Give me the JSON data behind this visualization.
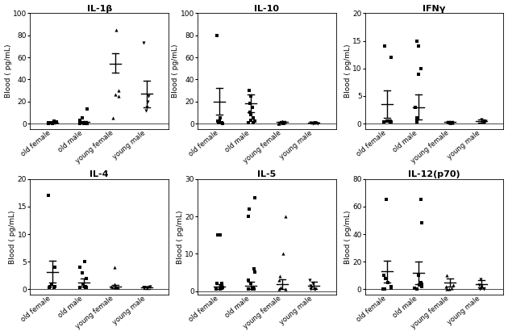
{
  "panels": [
    {
      "title": "IL-1β",
      "ylabel": "Blood ( pg/mL)",
      "ylim": [
        -5,
        100
      ],
      "yticks": [
        0,
        20,
        40,
        60,
        80,
        100
      ],
      "points": [
        [
          0.3,
          0.5,
          0.8,
          2.0,
          1.5,
          0.5,
          0.3,
          0.5,
          0.4
        ],
        [
          0.3,
          0.5,
          1.0,
          5.0,
          3.0,
          0.5,
          0.3,
          0.5,
          0.4,
          13.0,
          0.3
        ],
        [
          85,
          30,
          5,
          26,
          25
        ],
        [
          73,
          15,
          25,
          20,
          12
        ]
      ],
      "markers": [
        "s",
        "s",
        "^",
        "v"
      ],
      "means": [
        0.8,
        1.2,
        54,
        27
      ],
      "sem_low": [
        0.3,
        0.5,
        46,
        15
      ],
      "sem_high": [
        1.3,
        2.0,
        64,
        39
      ]
    },
    {
      "title": "IL-10",
      "ylabel": "Blood ( pg/mL)",
      "ylim": [
        -5,
        100
      ],
      "yticks": [
        0,
        20,
        40,
        60,
        80,
        100
      ],
      "points": [
        [
          80,
          2,
          1,
          0.5,
          0.5,
          0.3,
          0.5,
          2,
          5
        ],
        [
          30,
          25,
          18,
          15,
          10,
          8,
          5,
          3,
          2,
          1,
          0.5
        ],
        [
          2,
          1,
          0.5,
          0.5,
          0.5,
          0.3,
          0.3,
          1.5
        ],
        [
          1,
          0.5,
          0.3,
          0.5,
          0.5,
          0.3,
          1.0
        ]
      ],
      "markers": [
        "s",
        "s",
        "^",
        "v"
      ],
      "means": [
        20,
        18,
        1.5,
        1.0
      ],
      "sem_low": [
        8,
        10,
        0.5,
        0.3
      ],
      "sem_high": [
        32,
        26,
        2.5,
        1.7
      ]
    },
    {
      "title": "IFNγ",
      "ylabel": "Blood ( pg/mL)",
      "ylim": [
        -1,
        20
      ],
      "yticks": [
        0,
        5,
        10,
        15,
        20
      ],
      "points": [
        [
          14,
          12,
          0.3,
          0.3,
          0.5,
          0.5,
          0.3
        ],
        [
          15,
          14,
          10,
          9,
          3,
          1,
          0.5,
          0.3
        ],
        [
          0.3,
          0.3,
          0.2,
          0.2,
          0.3,
          0.2
        ],
        [
          0.8,
          0.5,
          0.3,
          0.3,
          0.5,
          0.5
        ]
      ],
      "markers": [
        "s",
        "s",
        "^",
        "v"
      ],
      "means": [
        3.5,
        3.0,
        0.3,
        0.5
      ],
      "sem_low": [
        1.0,
        0.8,
        0.1,
        0.2
      ],
      "sem_high": [
        6.0,
        5.2,
        0.5,
        0.8
      ]
    },
    {
      "title": "IL-4",
      "ylabel": "Blood ( pg/mL)",
      "ylim": [
        -1,
        20
      ],
      "yticks": [
        0,
        5,
        10,
        15,
        20
      ],
      "points": [
        [
          17,
          4,
          0.5,
          1,
          0.5,
          0.3,
          0.3
        ],
        [
          5,
          4,
          3,
          2,
          1,
          0.5,
          0.5,
          0.3,
          0.3,
          0.3
        ],
        [
          4,
          1,
          0.5,
          0.3,
          0.3,
          0.3
        ],
        [
          0.5,
          0.3,
          0.3,
          0.3,
          0.3
        ]
      ],
      "markers": [
        "s",
        "s",
        "^",
        "v"
      ],
      "means": [
        3.2,
        1.2,
        0.5,
        0.3
      ],
      "sem_low": [
        1.2,
        0.5,
        0.2,
        0.1
      ],
      "sem_high": [
        5.2,
        1.9,
        0.8,
        0.5
      ]
    },
    {
      "title": "IL-5",
      "ylabel": "Blood ( pg/mL)",
      "ylim": [
        -1,
        30
      ],
      "yticks": [
        0,
        10,
        20,
        30
      ],
      "points": [
        [
          15,
          15,
          2,
          1.5,
          1,
          0.5,
          0.5,
          2
        ],
        [
          25,
          22,
          20,
          6,
          5,
          3,
          2,
          1,
          0.5,
          0.5,
          0.5
        ],
        [
          20,
          10,
          4,
          3,
          1,
          0.5,
          0.5
        ],
        [
          3,
          2,
          1.5,
          1,
          0.5,
          0.5,
          0.5
        ]
      ],
      "markers": [
        "s",
        "s",
        "^",
        "v"
      ],
      "means": [
        1.2,
        1.5,
        1.8,
        1.5
      ],
      "sem_low": [
        0.5,
        0.5,
        0.5,
        0.5
      ],
      "sem_high": [
        1.9,
        2.5,
        3.1,
        2.5
      ]
    },
    {
      "title": "IL-12(p70)",
      "ylabel": "Blood ( pg/mL)",
      "ylim": [
        -4,
        80
      ],
      "yticks": [
        0,
        20,
        40,
        60,
        80
      ],
      "points": [
        [
          65,
          10,
          8,
          5,
          2,
          1,
          0.5,
          0.5
        ],
        [
          65,
          48,
          10,
          5,
          4,
          3,
          2,
          1,
          0.5,
          0.5
        ],
        [
          10,
          3,
          2,
          1,
          0.5,
          0.5
        ],
        [
          7,
          3,
          2,
          1,
          0.5,
          0.5
        ]
      ],
      "markers": [
        "s",
        "s",
        "^",
        "v"
      ],
      "means": [
        13,
        12,
        5,
        4
      ],
      "sem_low": [
        5,
        4,
        2,
        1.5
      ],
      "sem_high": [
        21,
        20,
        8,
        6.5
      ]
    }
  ],
  "background_color": "#ffffff",
  "point_color": "black",
  "marker_size": 3,
  "xlabel_fontsize": 6,
  "ylabel_fontsize": 6.5,
  "title_fontsize": 8,
  "tick_fontsize": 6.5,
  "group_labels": [
    "old female",
    "old male",
    "young female",
    "young male"
  ]
}
